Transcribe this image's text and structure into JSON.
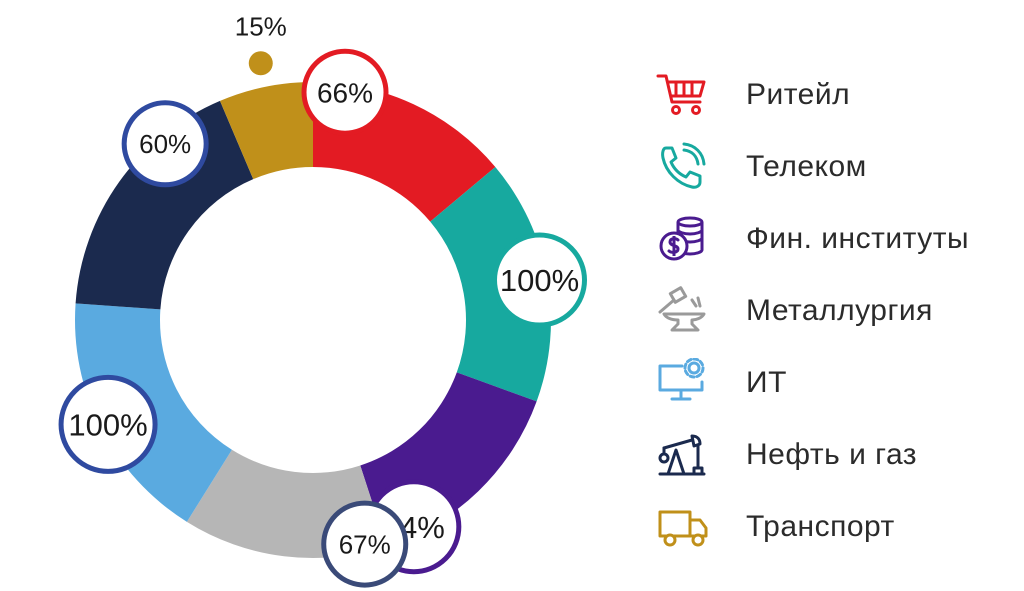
{
  "chart_data": {
    "type": "pie",
    "categories": [
      "Ритейл",
      "Телеком",
      "Фин. институты",
      "Металлургия",
      "ИТ",
      "Нефть и газ",
      "Транспорт"
    ],
    "values": [
      66,
      100,
      84,
      67,
      100,
      60,
      15
    ],
    "value_labels": [
      "66%",
      "100%",
      "84%",
      "67%",
      "100%",
      "60%",
      "15%"
    ],
    "colors": [
      "#e31b23",
      "#17a99f",
      "#4a1b8f",
      "#b6b6b6",
      "#5aaae0",
      "#1b2a4e",
      "#c0901a"
    ],
    "legend": "right"
  },
  "legend_items": [
    {
      "label": "Ритейл",
      "icon": "shopping-cart-icon",
      "color": "#e31b23"
    },
    {
      "label": "Телеком",
      "icon": "phone-icon",
      "color": "#17a99f"
    },
    {
      "label": "Фин. институты",
      "icon": "coins-dollar-icon",
      "color": "#4a1b8f"
    },
    {
      "label": "Металлургия",
      "icon": "anvil-hammer-icon",
      "color": "#9a9a9a"
    },
    {
      "label": "ИТ",
      "icon": "monitor-gear-icon",
      "color": "#5aaae0"
    },
    {
      "label": "Нефть и газ",
      "icon": "oil-pump-icon",
      "color": "#1b2a4e"
    },
    {
      "label": "Транспорт",
      "icon": "truck-icon",
      "color": "#c0901a"
    }
  ]
}
